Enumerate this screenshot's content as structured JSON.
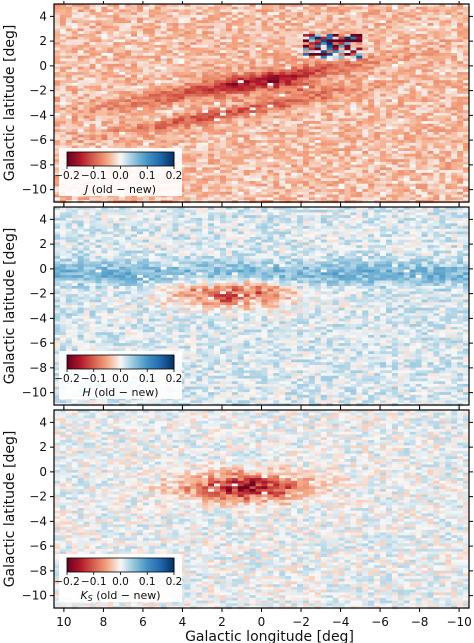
{
  "chart_data": [
    {
      "type": "heatmap",
      "xlabel": "",
      "ylabel": "Galactic latitude [deg]",
      "xlim": [
        10.5,
        -10.5
      ],
      "ylim": [
        -11,
        5
      ],
      "yticks": [
        4,
        2,
        0,
        -2,
        -4,
        -6,
        -8,
        -10
      ],
      "colorbar": {
        "label": "J (old − new)",
        "ticks": [
          -0.2,
          -0.1,
          0.0,
          0.1,
          0.2
        ],
        "range": [
          -0.2,
          0.2
        ],
        "cmap": "RdBu"
      },
      "features": {
        "bias": -0.035,
        "stripe_amp": -0.09,
        "bulge_amp": -0.05,
        "center_l": -0.8,
        "center_b": -1.5,
        "blue_patch": true
      }
    },
    {
      "type": "heatmap",
      "xlabel": "",
      "ylabel": "Galactic latitude [deg]",
      "xlim": [
        10.5,
        -10.5
      ],
      "ylim": [
        -11,
        5
      ],
      "yticks": [
        4,
        2,
        0,
        -2,
        -4,
        -6,
        -8,
        -10
      ],
      "colorbar": {
        "label": "H (old − new)",
        "ticks": [
          -0.2,
          -0.1,
          0.0,
          0.1,
          0.2
        ],
        "range": [
          -0.2,
          0.2
        ],
        "cmap": "RdBu"
      },
      "features": {
        "bias": 0.015,
        "band_amp": 0.05,
        "band_b": -0.4,
        "bulge_amp": -0.12,
        "center_l": 1.4,
        "center_b": -2.0,
        "blue_patch": false
      }
    },
    {
      "type": "heatmap",
      "xlabel": "Galactic longitude [deg]",
      "ylabel": "Galactic latitude [deg]",
      "xlim": [
        10.5,
        -10.5
      ],
      "ylim": [
        -11,
        5
      ],
      "xticks": [
        10,
        8,
        6,
        4,
        2,
        0,
        -2,
        -4,
        -6,
        -8,
        -10
      ],
      "yticks": [
        4,
        2,
        0,
        -2,
        -4,
        -6,
        -8,
        -10
      ],
      "colorbar": {
        "label": "K_S (old − new)",
        "ticks": [
          -0.2,
          -0.1,
          0.0,
          0.1,
          0.2
        ],
        "range": [
          -0.2,
          0.2
        ],
        "cmap": "RdBu"
      },
      "features": {
        "bias": 0.005,
        "bulge_amp": -0.15,
        "center_l": 0.8,
        "center_b": -1.2,
        "blue_patch": false
      }
    }
  ]
}
